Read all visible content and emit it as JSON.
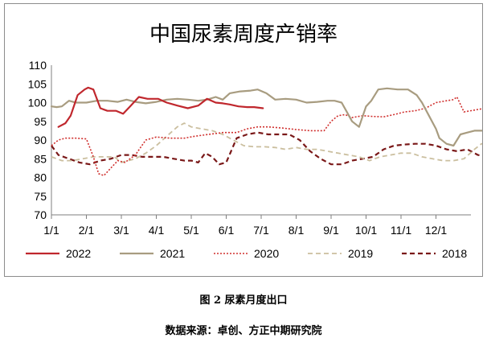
{
  "caption": "图 2 尿素月度出口",
  "source": "数据来源：卓创、方正中期研究院",
  "chart_data": {
    "type": "line",
    "title": "中国尿素周度产销率",
    "xlabel": "",
    "ylabel": "",
    "xlim": [
      0,
      12
    ],
    "ylim": [
      70,
      110
    ],
    "y_ticks": [
      70,
      75,
      80,
      85,
      90,
      95,
      100,
      105,
      110
    ],
    "x_ticks": [
      "1/1",
      "2/1",
      "3/1",
      "4/1",
      "5/1",
      "6/1",
      "7/1",
      "8/1",
      "9/1",
      "10/1",
      "11/1",
      "12/1"
    ],
    "grid": false,
    "legend_position": "bottom",
    "series": [
      {
        "name": "2022",
        "color": "#c0272d",
        "dash": "solid",
        "width": 2.2,
        "x": [
          0.2,
          0.4,
          0.55,
          0.75,
          0.95,
          1.05,
          1.2,
          1.4,
          1.6,
          1.85,
          2.05,
          2.25,
          2.5,
          2.75,
          3.05,
          3.3,
          3.6,
          3.9,
          4.2,
          4.45,
          4.7,
          4.9,
          5.1,
          5.35,
          5.6,
          5.8,
          6.05
        ],
        "y": [
          93.5,
          94.5,
          96.5,
          102,
          103.5,
          104,
          103.5,
          98.5,
          97.8,
          97.8,
          97,
          99,
          101.5,
          101,
          101,
          100,
          99.2,
          98.5,
          99.2,
          101,
          100,
          99.8,
          99.5,
          99,
          98.8,
          98.8,
          98.5
        ]
      },
      {
        "name": "2021",
        "color": "#a89c80",
        "dash": "solid",
        "width": 2.2,
        "x": [
          0,
          0.15,
          0.3,
          0.5,
          0.7,
          1.0,
          1.3,
          1.6,
          1.9,
          2.15,
          2.4,
          2.7,
          3.0,
          3.3,
          3.6,
          3.9,
          4.2,
          4.45,
          4.7,
          4.9,
          5.1,
          5.4,
          5.7,
          5.9,
          6.15,
          6.4,
          6.7,
          7.0,
          7.3,
          7.6,
          7.9,
          8.1,
          8.3,
          8.45,
          8.6,
          8.8,
          9.0,
          9.15,
          9.35,
          9.6,
          9.9,
          10.2,
          10.45,
          10.6,
          10.8,
          11.0,
          11.1,
          11.3,
          11.5,
          11.7,
          11.9,
          12.1,
          12.35,
          12.5
        ],
        "y": [
          99,
          98.8,
          99,
          100.5,
          100,
          100,
          100.5,
          100.5,
          100.2,
          100.8,
          100.2,
          99.8,
          100.2,
          100.8,
          101,
          100.8,
          100.5,
          100.8,
          101.5,
          100.8,
          102.5,
          103,
          103.2,
          103.5,
          102.5,
          100.8,
          101,
          100.8,
          100,
          100.2,
          100.5,
          100.5,
          100,
          97.5,
          95,
          93.5,
          99,
          100.5,
          103.5,
          103.8,
          103.5,
          103.5,
          102,
          100,
          96.5,
          93,
          90.5,
          89,
          88.5,
          91.5,
          92,
          92.5,
          92.5,
          90.5
        ]
      },
      {
        "name": "2020",
        "color": "#d0302e",
        "dash": "dot",
        "width": 1.6,
        "x": [
          0,
          0.2,
          0.4,
          0.7,
          1.0,
          1.2,
          1.35,
          1.5,
          1.7,
          1.9,
          2.1,
          2.4,
          2.7,
          3.0,
          3.4,
          3.8,
          4.1,
          4.5,
          4.9,
          5.3,
          5.6,
          5.9,
          6.2,
          6.6,
          7.0,
          7.4,
          7.8,
          8.0,
          8.2,
          8.4,
          8.6,
          8.9,
          9.2,
          9.5,
          9.8,
          10.1,
          10.4,
          10.7,
          11.0,
          11.3,
          11.5,
          11.6,
          11.8,
          12.1,
          12.4,
          12.6
        ],
        "y": [
          88.5,
          90,
          90.5,
          90.5,
          90.3,
          85.5,
          81,
          80.5,
          82.5,
          84.5,
          84,
          86,
          90,
          90.8,
          90.5,
          90.5,
          91,
          91.5,
          92,
          92,
          93,
          93.5,
          93.5,
          93.2,
          92.8,
          92.5,
          92.5,
          95,
          96.5,
          96.8,
          96,
          96.5,
          96.3,
          96.2,
          96.8,
          97.5,
          97.8,
          98.5,
          100,
          100.5,
          100.8,
          101.5,
          97.5,
          98,
          98.5,
          98.8
        ]
      },
      {
        "name": "2019",
        "color": "#cbbf9f",
        "dash": "dash",
        "width": 1.8,
        "x": [
          0,
          0.3,
          0.6,
          0.9,
          1.2,
          1.5,
          1.8,
          2.0,
          2.2,
          2.4,
          2.7,
          3.0,
          3.3,
          3.6,
          3.8,
          4.0,
          4.3,
          4.6,
          4.9,
          5.2,
          5.5,
          5.8,
          6.1,
          6.4,
          6.7,
          7.0,
          7.3,
          7.6,
          7.9,
          8.2,
          8.5,
          8.8,
          9.1,
          9.4,
          9.7,
          10.0,
          10.3,
          10.6,
          10.9,
          11.2,
          11.5,
          11.8,
          12.1,
          12.3,
          12.5
        ],
        "y": [
          85.5,
          84.5,
          84.5,
          85,
          85.5,
          85.5,
          85.5,
          84,
          84.5,
          85,
          86.5,
          88.5,
          91,
          93.5,
          94.5,
          93.5,
          93,
          92.5,
          91.5,
          90,
          88.5,
          88.2,
          88.2,
          88,
          87.5,
          88,
          87.5,
          87.5,
          87,
          86.5,
          86,
          85.5,
          84.5,
          85.5,
          86,
          86.5,
          86.5,
          85.5,
          85,
          84.5,
          84.5,
          85,
          87.5,
          89,
          89
        ]
      },
      {
        "name": "2018",
        "color": "#7a1818",
        "dash": "dash",
        "width": 2.2,
        "x": [
          0,
          0.2,
          0.5,
          0.8,
          1.1,
          1.4,
          1.7,
          2.0,
          2.3,
          2.6,
          2.9,
          3.2,
          3.5,
          3.8,
          4.0,
          4.2,
          4.4,
          4.6,
          4.8,
          5.0,
          5.3,
          5.6,
          5.9,
          6.2,
          6.5,
          6.8,
          7.1,
          7.4,
          7.7,
          8.0,
          8.3,
          8.6,
          8.9,
          9.2,
          9.5,
          9.8,
          10.1,
          10.4,
          10.7,
          11.0,
          11.3,
          11.6,
          11.9,
          12.2,
          12.5
        ],
        "y": [
          88.5,
          86,
          85,
          84,
          83.5,
          84.5,
          85,
          86,
          86,
          85.5,
          85.5,
          85.5,
          85,
          84.5,
          84.5,
          84,
          86.5,
          85.5,
          83.5,
          84,
          90.5,
          91.5,
          92,
          91.5,
          91.5,
          91.5,
          90,
          87,
          85,
          83.5,
          83.5,
          84.5,
          85,
          85.5,
          87.5,
          88.5,
          88.8,
          89,
          89,
          88.5,
          87.5,
          87,
          87.5,
          86,
          85.5
        ]
      }
    ]
  }
}
